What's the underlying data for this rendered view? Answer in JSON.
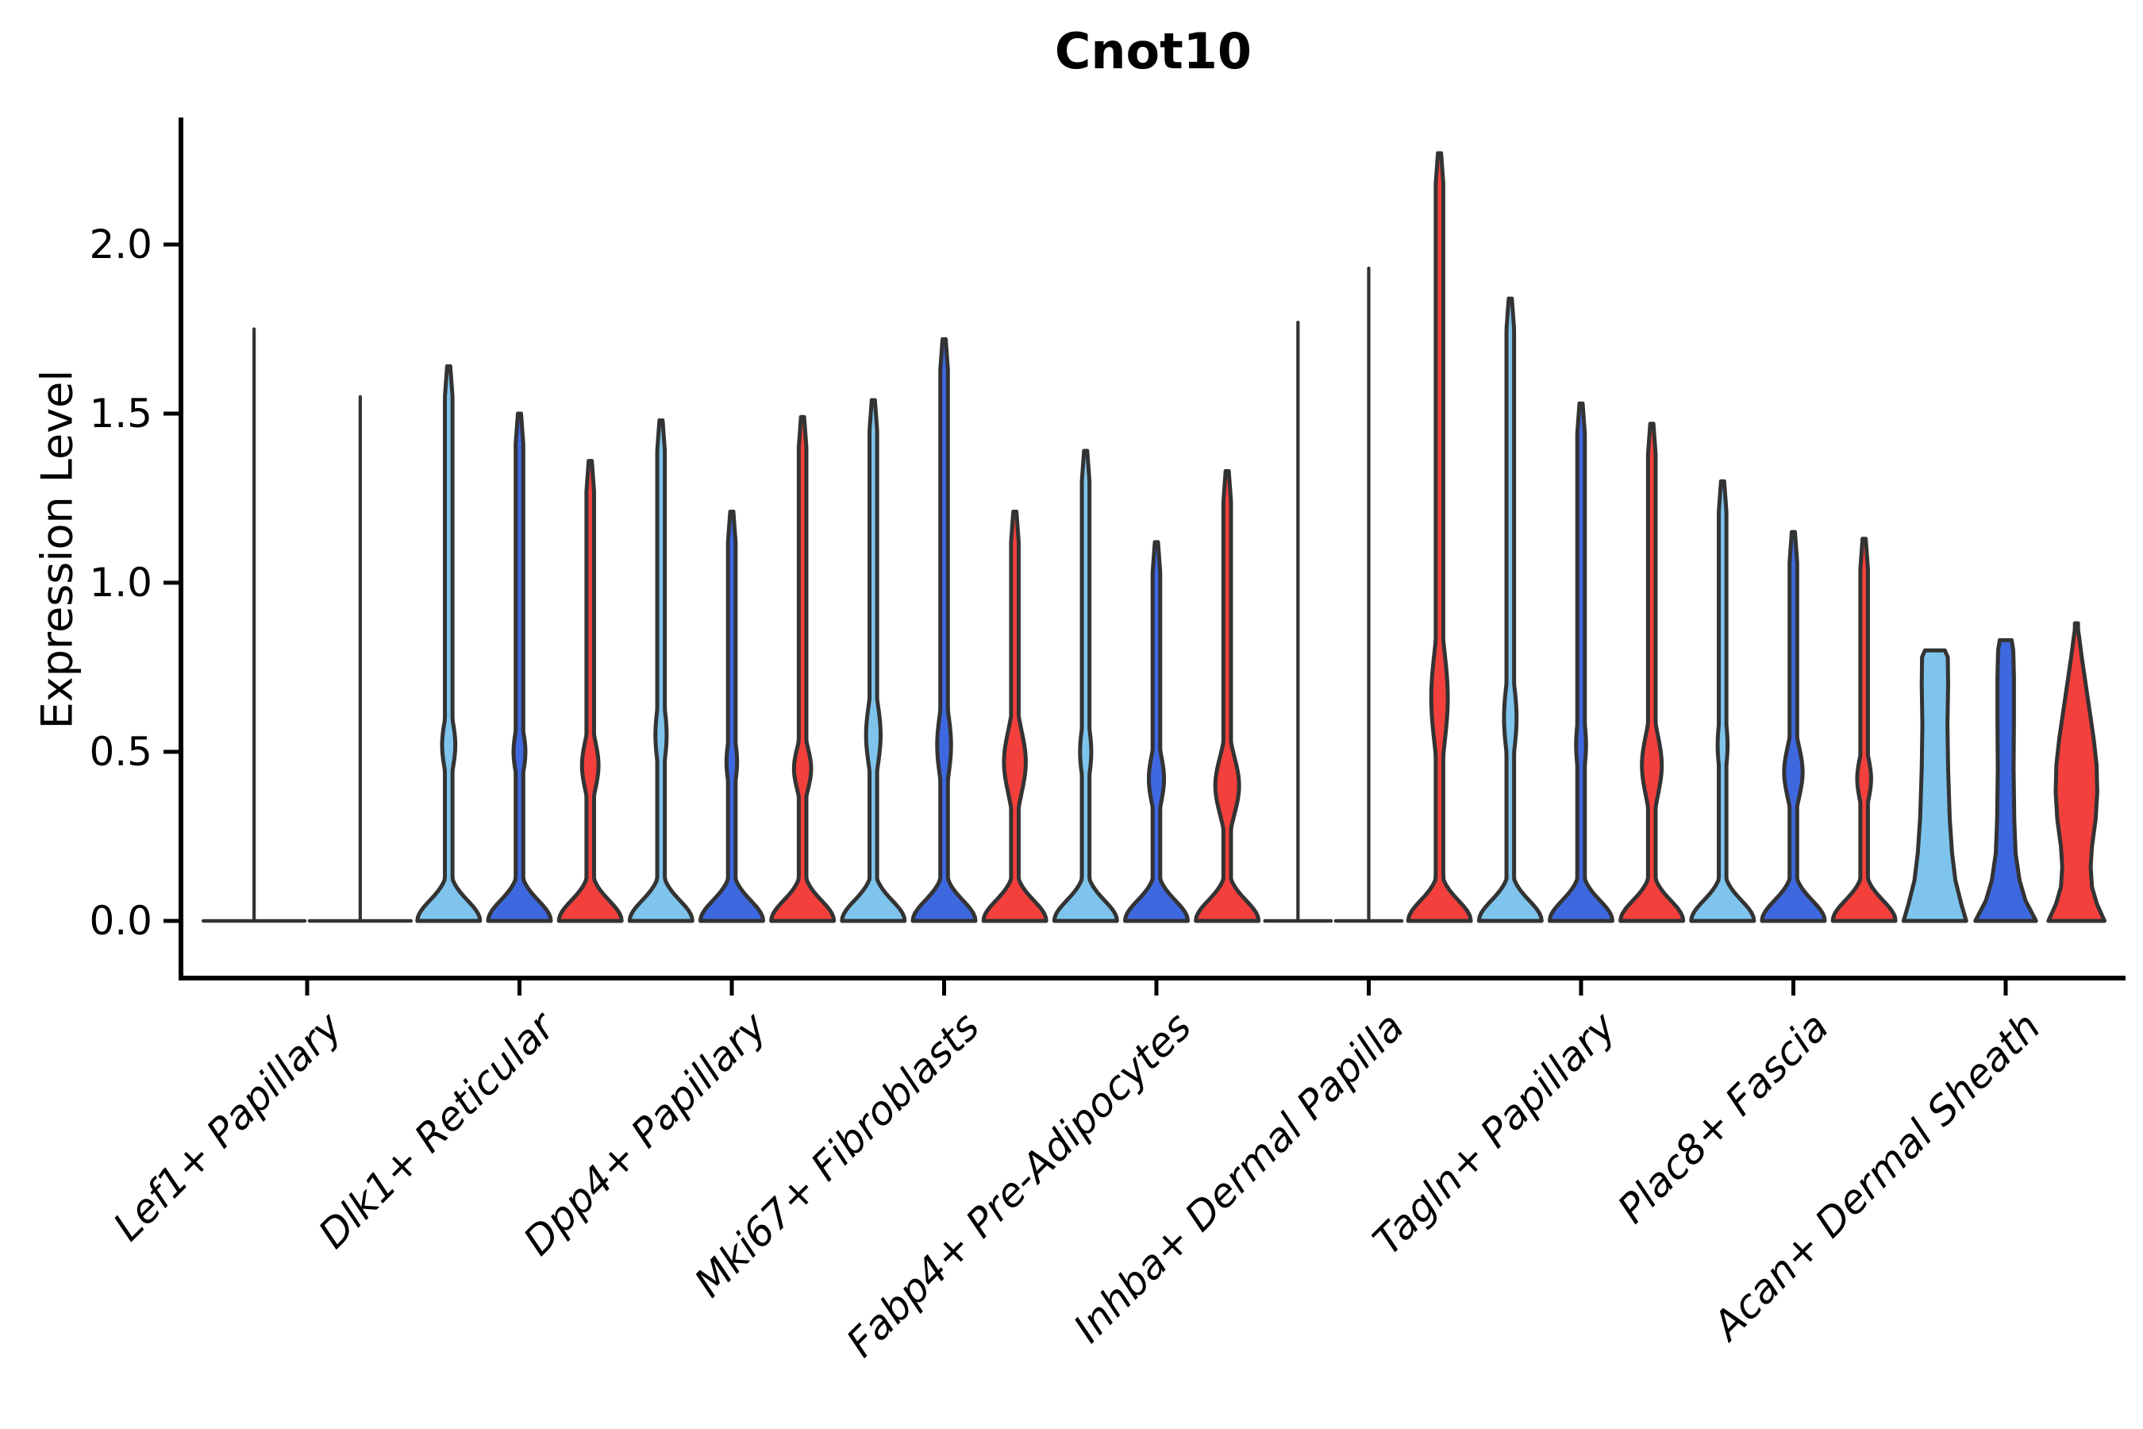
{
  "title": "Cnot10",
  "chart_data": {
    "type": "violin",
    "title": "Cnot10",
    "ylabel": "Expression Level",
    "xlabel": "",
    "yticks": [
      0.0,
      0.5,
      1.0,
      1.5,
      2.0
    ],
    "ytick_labels": [
      "0.0",
      "0.5",
      "1.0",
      "1.5",
      "2.0"
    ],
    "ylim": [
      -0.17,
      2.37
    ],
    "grid": false,
    "legend": "none",
    "hue_colors": {
      "lightblue": "#7EC4EC",
      "blue": "#3E68E0",
      "red": "#F4403C"
    },
    "outline_color": "#333333",
    "axis_color": "#000000",
    "categories": [
      "Lef1+ Papillary",
      "Dlk1+ Reticular",
      "Dpp4+ Papillary",
      "Mki67+ Fibroblasts",
      "Fabp4+ Pre-Adipocytes",
      "Inhba+ Dermal Papilla",
      "Tagln+ Papillary",
      "Plac8+ Fascia",
      "Acan+ Dermal Sheath"
    ],
    "groups": [
      {
        "category": "Lef1+ Papillary",
        "violins": [
          {
            "color": "lightblue",
            "max": 1.75,
            "style": "spike"
          },
          {
            "color": "blue",
            "max": 1.55,
            "style": "spike"
          }
        ]
      },
      {
        "category": "Dlk1+ Reticular",
        "violins": [
          {
            "color": "lightblue",
            "max": 1.64,
            "style": "violin",
            "bulge": {
              "center": 0.52,
              "spread": 0.17,
              "halfwidth": 0.2
            }
          },
          {
            "color": "blue",
            "max": 1.5,
            "style": "violin",
            "bulge": {
              "center": 0.5,
              "spread": 0.15,
              "halfwidth": 0.18
            }
          },
          {
            "color": "red",
            "max": 1.36,
            "style": "violin",
            "bulge": {
              "center": 0.46,
              "spread": 0.17,
              "halfwidth": 0.25
            }
          }
        ]
      },
      {
        "category": "Dpp4+ Papillary",
        "violins": [
          {
            "color": "lightblue",
            "max": 1.48,
            "style": "violin",
            "bulge": {
              "center": 0.55,
              "spread": 0.2,
              "halfwidth": 0.17
            }
          },
          {
            "color": "blue",
            "max": 1.21,
            "style": "violin",
            "bulge": {
              "center": 0.47,
              "spread": 0.16,
              "halfwidth": 0.16
            }
          },
          {
            "color": "red",
            "max": 1.49,
            "style": "violin",
            "bulge": {
              "center": 0.45,
              "spread": 0.15,
              "halfwidth": 0.26
            }
          }
        ]
      },
      {
        "category": "Mki67+ Fibroblasts",
        "violins": [
          {
            "color": "lightblue",
            "max": 1.54,
            "style": "violin",
            "bulge": {
              "center": 0.55,
              "spread": 0.22,
              "halfwidth": 0.22
            }
          },
          {
            "color": "blue",
            "max": 1.72,
            "style": "violin",
            "bulge": {
              "center": 0.52,
              "spread": 0.22,
              "halfwidth": 0.21
            }
          },
          {
            "color": "red",
            "max": 1.21,
            "style": "violin",
            "bulge": {
              "center": 0.47,
              "spread": 0.22,
              "halfwidth": 0.33
            }
          }
        ]
      },
      {
        "category": "Fabp4+ Pre-Adipocytes",
        "violins": [
          {
            "color": "lightblue",
            "max": 1.39,
            "style": "violin",
            "bulge": {
              "center": 0.5,
              "spread": 0.18,
              "halfwidth": 0.17
            }
          },
          {
            "color": "blue",
            "max": 1.12,
            "style": "violin",
            "bulge": {
              "center": 0.42,
              "spread": 0.17,
              "halfwidth": 0.23
            }
          },
          {
            "color": "red",
            "max": 1.33,
            "style": "violin",
            "bulge": {
              "center": 0.4,
              "spread": 0.2,
              "halfwidth": 0.36
            }
          }
        ]
      },
      {
        "category": "Inhba+ Dermal Papilla",
        "violins": [
          {
            "color": "lightblue",
            "max": 1.77,
            "style": "spike"
          },
          {
            "color": "blue",
            "max": 1.93,
            "style": "spike"
          },
          {
            "color": "red",
            "max": 2.27,
            "style": "violin",
            "bulge": {
              "center": 0.66,
              "spread": 0.32,
              "halfwidth": 0.25
            }
          }
        ]
      },
      {
        "category": "Tagln+ Papillary",
        "violins": [
          {
            "color": "lightblue",
            "max": 1.84,
            "style": "violin",
            "bulge": {
              "center": 0.6,
              "spread": 0.24,
              "halfwidth": 0.19
            }
          },
          {
            "color": "blue",
            "max": 1.53,
            "style": "violin",
            "bulge": {
              "center": 0.52,
              "spread": 0.19,
              "halfwidth": 0.15
            }
          },
          {
            "color": "red",
            "max": 1.47,
            "style": "violin",
            "bulge": {
              "center": 0.46,
              "spread": 0.21,
              "halfwidth": 0.3
            }
          }
        ]
      },
      {
        "category": "Plac8+ Fascia",
        "violins": [
          {
            "color": "lightblue",
            "max": 1.3,
            "style": "violin",
            "bulge": {
              "center": 0.52,
              "spread": 0.19,
              "halfwidth": 0.15
            }
          },
          {
            "color": "blue",
            "max": 1.15,
            "style": "violin",
            "bulge": {
              "center": 0.44,
              "spread": 0.18,
              "halfwidth": 0.28
            }
          },
          {
            "color": "red",
            "max": 1.13,
            "style": "violin",
            "bulge": {
              "center": 0.42,
              "spread": 0.15,
              "halfwidth": 0.21
            }
          }
        ]
      },
      {
        "category": "Acan+ Dermal Sheath",
        "violins": [
          {
            "color": "lightblue",
            "max": 0.8,
            "style": "profile",
            "profile": [
              [
                0,
                0.95
              ],
              [
                0.05,
                0.8
              ],
              [
                0.12,
                0.62
              ],
              [
                0.2,
                0.52
              ],
              [
                0.3,
                0.45
              ],
              [
                0.45,
                0.4
              ],
              [
                0.58,
                0.38
              ],
              [
                0.7,
                0.4
              ],
              [
                0.78,
                0.39
              ]
            ],
            "top": {
              "value": 0.8,
              "halfwidth": 0.3,
              "flat": true
            }
          },
          {
            "color": "blue",
            "max": 0.83,
            "style": "profile",
            "profile": [
              [
                0,
                0.92
              ],
              [
                0.06,
                0.6
              ],
              [
                0.12,
                0.42
              ],
              [
                0.2,
                0.3
              ],
              [
                0.3,
                0.26
              ],
              [
                0.45,
                0.24
              ],
              [
                0.6,
                0.25
              ],
              [
                0.72,
                0.25
              ],
              [
                0.8,
                0.23
              ]
            ],
            "top": {
              "value": 0.83,
              "halfwidth": 0.18,
              "flat": true
            }
          },
          {
            "color": "red",
            "max": 0.88,
            "style": "profile",
            "profile": [
              [
                0,
                0.85
              ],
              [
                0.05,
                0.62
              ],
              [
                0.1,
                0.47
              ],
              [
                0.16,
                0.43
              ],
              [
                0.22,
                0.47
              ],
              [
                0.3,
                0.58
              ],
              [
                0.38,
                0.63
              ],
              [
                0.46,
                0.61
              ],
              [
                0.54,
                0.52
              ],
              [
                0.62,
                0.4
              ],
              [
                0.7,
                0.28
              ],
              [
                0.78,
                0.16
              ],
              [
                0.84,
                0.08
              ]
            ],
            "top": {
              "value": 0.88,
              "halfwidth": 0.02,
              "flat": false
            }
          }
        ]
      }
    ]
  }
}
